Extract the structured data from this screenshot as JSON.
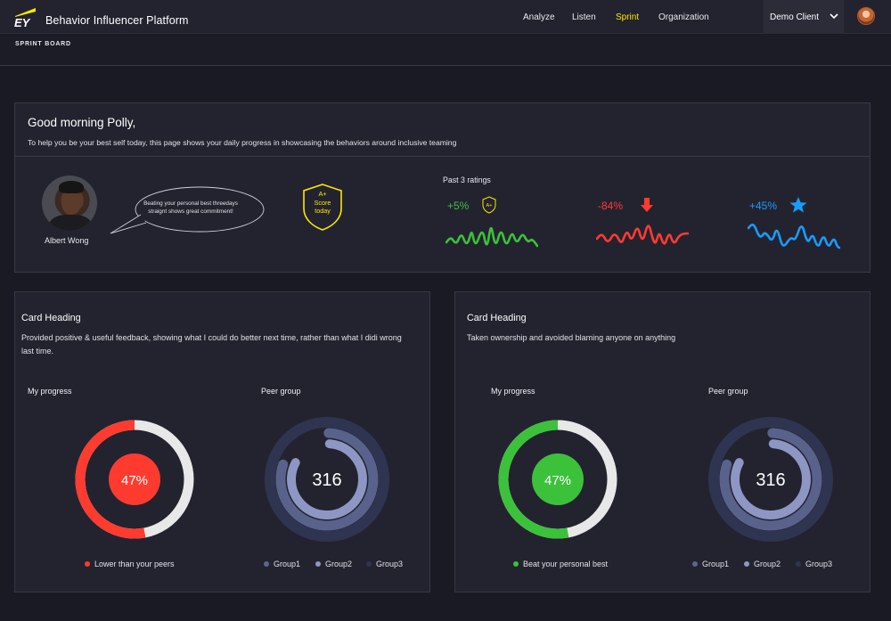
{
  "header": {
    "logo": "EY",
    "app_title": "Behavior Influencer Platform",
    "nav": [
      "Analyze",
      "Listen",
      "Sprint",
      "Organization"
    ],
    "active_nav": "Sprint",
    "client": "Demo Client",
    "accent_color": "#ffe600"
  },
  "subbar": {
    "label": "SPRINT BOARD"
  },
  "greeting": {
    "title": "Good morning Polly,",
    "subtitle": "To help you be your best self today, this page shows your daily progress in showcasing the behaviors around inclusive teaming",
    "person_name": "Albert Wong",
    "bubble_text": "Beating your personal best threedays straignt shows great commitment!",
    "badge": {
      "line1": "A+",
      "line2": "Score",
      "line3": "today"
    },
    "past_label": "Past 3 ratings",
    "ratings": [
      {
        "value": "+5%",
        "color": "#3cc13b",
        "icon": "a-plus-shield-icon",
        "icon_text": "A+"
      },
      {
        "value": "-84%",
        "color": "#ff3b30",
        "icon": "arrow-down-icon"
      },
      {
        "value": "+45%",
        "color": "#1a9bfc",
        "icon": "star-icon"
      }
    ]
  },
  "cards": [
    {
      "heading": "Card Heading",
      "description": "Provided positive & useful feedback, showing what I could do better next time, rather than what I didi wrong last time.",
      "my_progress_label": "My progress",
      "peer_group_label": "Peer group",
      "progress_value": "47%",
      "progress_fraction": 0.47,
      "progress_color": "#ff3b30",
      "progress_legend": "Lower than your peers",
      "peer_value": "316",
      "groups": [
        "Group1",
        "Group2",
        "Group3"
      ]
    },
    {
      "heading": "Card Heading",
      "description": "Taken ownership and avoided blaming anyone on anything",
      "my_progress_label": "My progress",
      "peer_group_label": "Peer group",
      "progress_value": "47%",
      "progress_fraction": 0.47,
      "progress_color": "#3cc13b",
      "progress_legend": "Beat your personal best",
      "peer_value": "316",
      "groups": [
        "Group1",
        "Group2",
        "Group3"
      ]
    }
  ],
  "group_colors": [
    "#5c6690",
    "#8e96c4",
    "#2f3450"
  ]
}
